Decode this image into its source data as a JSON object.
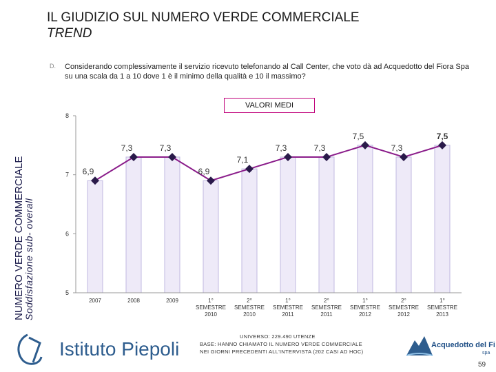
{
  "header": {
    "title": "IL GIUDIZIO SUL NUMERO VERDE COMMERCIALE",
    "subtitle": "TREND"
  },
  "question": {
    "icon": "D.",
    "text": "Considerando complessivamente il servizio ricevuto telefonando al Call Center, che voto dà ad Acquedotto del Fiora Spa su una scala da 1 a 10 dove 1 è il minimo della qualità e 10 il massimo?"
  },
  "valori_label": "VALORI MEDI",
  "side_label": {
    "line1": "NUMERO VERDE COMMERCIALE",
    "line2": "Soddisfazione sub- overall"
  },
  "chart_data": {
    "type": "bar",
    "title": "VALORI MEDI",
    "categories": [
      [
        "2007"
      ],
      [
        "2008"
      ],
      [
        "2009"
      ],
      [
        "1°",
        "SEMESTRE",
        "2010"
      ],
      [
        "2°",
        "SEMESTRE",
        "2010"
      ],
      [
        "1°",
        "SEMESTRE",
        "2011"
      ],
      [
        "2°",
        "SEMESTRE",
        "2011"
      ],
      [
        "1°",
        "SEMESTRE",
        "2012"
      ],
      [
        "2°",
        "SEMESTRE",
        "2012"
      ],
      [
        "1°",
        "SEMESTRE",
        "2013"
      ]
    ],
    "values": [
      6.9,
      7.3,
      7.3,
      6.9,
      7.1,
      7.3,
      7.3,
      7.5,
      7.3,
      7.5
    ],
    "value_labels": [
      "6,9",
      "7,3",
      "7,3",
      "6,9",
      "7,1",
      "7,3",
      "7,3",
      "7,5",
      "7,3",
      "7,5"
    ],
    "ylim": [
      5,
      8
    ],
    "yticks": [
      5,
      6,
      7,
      8
    ],
    "xlabel": "",
    "ylabel": "",
    "colors": {
      "bar_fill": "#eeeaf8",
      "bar_edge": "#c0b8e0",
      "line": "#8a1c8a",
      "marker": "#2a1a4a",
      "axis": "#999999",
      "label": "#333333"
    }
  },
  "footer": {
    "logo_text": "Istituto Piepoli",
    "right_logo_text": "Acquedotto del Fiora",
    "right_logo_sub": "spa",
    "note_line1": "UNIVERSO: 229.490 UTENZE",
    "note_line2": "BASE: HANNO CHIAMATO IL NUMERO VERDE COMMERCIALE",
    "note_line3": "NEI GIORNI PRECEDENTI ALL'INTERVISTA (202 CASI AD HOC)",
    "page_number": "59"
  }
}
